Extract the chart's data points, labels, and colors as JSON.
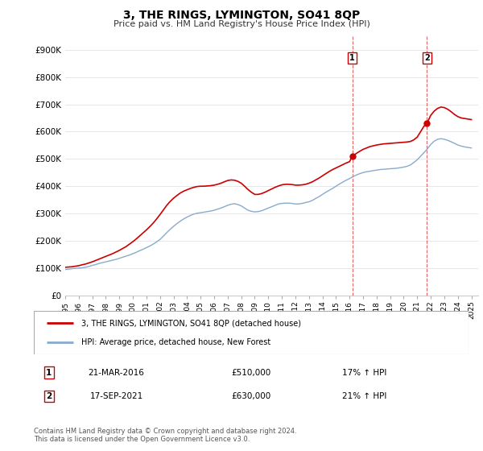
{
  "title": "3, THE RINGS, LYMINGTON, SO41 8QP",
  "subtitle": "Price paid vs. HM Land Registry's House Price Index (HPI)",
  "ylabel_ticks": [
    "£0",
    "£100K",
    "£200K",
    "£300K",
    "£400K",
    "£500K",
    "£600K",
    "£700K",
    "£800K",
    "£900K"
  ],
  "ytick_values": [
    0,
    100000,
    200000,
    300000,
    400000,
    500000,
    600000,
    700000,
    800000,
    900000
  ],
  "ylim": [
    0,
    950000
  ],
  "xlim_start": 1995.0,
  "xlim_end": 2025.5,
  "line1_color": "#cc0000",
  "line2_color": "#88aacc",
  "vline_color": "#cc0000",
  "legend_label1": "3, THE RINGS, LYMINGTON, SO41 8QP (detached house)",
  "legend_label2": "HPI: Average price, detached house, New Forest",
  "annotation1_label": "1",
  "annotation1_date": "21-MAR-2016",
  "annotation1_price": "£510,000",
  "annotation1_hpi": "17% ↑ HPI",
  "annotation1_year": 2016.21,
  "annotation1_value": 510000,
  "annotation2_label": "2",
  "annotation2_date": "17-SEP-2021",
  "annotation2_price": "£630,000",
  "annotation2_hpi": "21% ↑ HPI",
  "annotation2_year": 2021.71,
  "annotation2_value": 630000,
  "footer": "Contains HM Land Registry data © Crown copyright and database right 2024.\nThis data is licensed under the Open Government Licence v3.0.",
  "hpi_line": {
    "years": [
      1995.0,
      1995.25,
      1995.5,
      1995.75,
      1996.0,
      1996.25,
      1996.5,
      1996.75,
      1997.0,
      1997.25,
      1997.5,
      1997.75,
      1998.0,
      1998.25,
      1998.5,
      1998.75,
      1999.0,
      1999.25,
      1999.5,
      1999.75,
      2000.0,
      2000.25,
      2000.5,
      2000.75,
      2001.0,
      2001.25,
      2001.5,
      2001.75,
      2002.0,
      2002.25,
      2002.5,
      2002.75,
      2003.0,
      2003.25,
      2003.5,
      2003.75,
      2004.0,
      2004.25,
      2004.5,
      2004.75,
      2005.0,
      2005.25,
      2005.5,
      2005.75,
      2006.0,
      2006.25,
      2006.5,
      2006.75,
      2007.0,
      2007.25,
      2007.5,
      2007.75,
      2008.0,
      2008.25,
      2008.5,
      2008.75,
      2009.0,
      2009.25,
      2009.5,
      2009.75,
      2010.0,
      2010.25,
      2010.5,
      2010.75,
      2011.0,
      2011.25,
      2011.5,
      2011.75,
      2012.0,
      2012.25,
      2012.5,
      2012.75,
      2013.0,
      2013.25,
      2013.5,
      2013.75,
      2014.0,
      2014.25,
      2014.5,
      2014.75,
      2015.0,
      2015.25,
      2015.5,
      2015.75,
      2016.0,
      2016.25,
      2016.5,
      2016.75,
      2017.0,
      2017.25,
      2017.5,
      2017.75,
      2018.0,
      2018.25,
      2018.5,
      2018.75,
      2019.0,
      2019.25,
      2019.5,
      2019.75,
      2020.0,
      2020.25,
      2020.5,
      2020.75,
      2021.0,
      2021.25,
      2021.5,
      2021.75,
      2022.0,
      2022.25,
      2022.5,
      2022.75,
      2023.0,
      2023.25,
      2023.5,
      2023.75,
      2024.0,
      2024.25,
      2024.5,
      2024.75,
      2025.0
    ],
    "values": [
      95000,
      96000,
      98000,
      99000,
      100000,
      101000,
      103000,
      106000,
      110000,
      113000,
      117000,
      120000,
      123000,
      126000,
      129000,
      132000,
      136000,
      140000,
      144000,
      148000,
      153000,
      158000,
      164000,
      169000,
      175000,
      181000,
      188000,
      196000,
      205000,
      217000,
      230000,
      242000,
      253000,
      263000,
      272000,
      280000,
      287000,
      293000,
      298000,
      301000,
      303000,
      305000,
      307000,
      309000,
      312000,
      316000,
      320000,
      325000,
      330000,
      334000,
      336000,
      333000,
      328000,
      320000,
      312000,
      308000,
      306000,
      307000,
      310000,
      315000,
      320000,
      325000,
      330000,
      335000,
      337000,
      338000,
      338000,
      337000,
      335000,
      335000,
      337000,
      340000,
      343000,
      348000,
      355000,
      362000,
      370000,
      378000,
      385000,
      392000,
      400000,
      408000,
      415000,
      422000,
      428000,
      435000,
      441000,
      446000,
      450000,
      453000,
      455000,
      457000,
      459000,
      461000,
      462000,
      463000,
      464000,
      465000,
      466000,
      468000,
      470000,
      473000,
      478000,
      487000,
      497000,
      510000,
      523000,
      537000,
      553000,
      565000,
      572000,
      574000,
      572000,
      568000,
      563000,
      557000,
      551000,
      547000,
      544000,
      542000,
      540000
    ]
  },
  "price_line": {
    "years": [
      1995.0,
      1995.25,
      1995.5,
      1995.75,
      1996.0,
      1996.25,
      1996.5,
      1996.75,
      1997.0,
      1997.25,
      1997.5,
      1997.75,
      1998.0,
      1998.25,
      1998.5,
      1998.75,
      1999.0,
      1999.25,
      1999.5,
      1999.75,
      2000.0,
      2000.25,
      2000.5,
      2000.75,
      2001.0,
      2001.25,
      2001.5,
      2001.75,
      2002.0,
      2002.25,
      2002.5,
      2002.75,
      2003.0,
      2003.25,
      2003.5,
      2003.75,
      2004.0,
      2004.25,
      2004.5,
      2004.75,
      2005.0,
      2005.25,
      2005.5,
      2005.75,
      2006.0,
      2006.25,
      2006.5,
      2006.75,
      2007.0,
      2007.25,
      2007.5,
      2007.75,
      2008.0,
      2008.25,
      2008.5,
      2008.75,
      2009.0,
      2009.25,
      2009.5,
      2009.75,
      2010.0,
      2010.25,
      2010.5,
      2010.75,
      2011.0,
      2011.25,
      2011.5,
      2011.75,
      2012.0,
      2012.25,
      2012.5,
      2012.75,
      2013.0,
      2013.25,
      2013.5,
      2013.75,
      2014.0,
      2014.25,
      2014.5,
      2014.75,
      2015.0,
      2015.25,
      2015.5,
      2015.75,
      2016.0,
      2016.21,
      2016.5,
      2016.75,
      2017.0,
      2017.25,
      2017.5,
      2017.75,
      2018.0,
      2018.25,
      2018.5,
      2018.75,
      2019.0,
      2019.25,
      2019.5,
      2019.75,
      2020.0,
      2020.25,
      2020.5,
      2020.75,
      2021.0,
      2021.25,
      2021.5,
      2021.71,
      2022.0,
      2022.25,
      2022.5,
      2022.75,
      2023.0,
      2023.25,
      2023.5,
      2023.75,
      2024.0,
      2024.25,
      2024.5,
      2024.75,
      2025.0
    ],
    "values": [
      103000,
      104000,
      105000,
      107000,
      109000,
      112000,
      115000,
      119000,
      123000,
      128000,
      133000,
      138000,
      143000,
      148000,
      153000,
      159000,
      165000,
      172000,
      179000,
      188000,
      197000,
      207000,
      218000,
      229000,
      240000,
      252000,
      265000,
      280000,
      296000,
      313000,
      330000,
      344000,
      356000,
      366000,
      375000,
      382000,
      387000,
      392000,
      396000,
      399000,
      400000,
      400000,
      401000,
      402000,
      404000,
      407000,
      411000,
      416000,
      421000,
      423000,
      422000,
      418000,
      411000,
      400000,
      388000,
      378000,
      370000,
      370000,
      373000,
      378000,
      384000,
      390000,
      396000,
      401000,
      405000,
      407000,
      407000,
      406000,
      404000,
      404000,
      405000,
      407000,
      411000,
      416000,
      423000,
      430000,
      438000,
      446000,
      454000,
      461000,
      467000,
      473000,
      479000,
      485000,
      490000,
      510000,
      520000,
      528000,
      535000,
      540000,
      545000,
      548000,
      551000,
      553000,
      555000,
      556000,
      557000,
      558000,
      559000,
      560000,
      561000,
      562000,
      564000,
      570000,
      580000,
      600000,
      620000,
      630000,
      660000,
      675000,
      685000,
      690000,
      688000,
      682000,
      673000,
      663000,
      655000,
      650000,
      648000,
      646000,
      644000
    ]
  },
  "xtick_years": [
    1995,
    1996,
    1997,
    1998,
    1999,
    2000,
    2001,
    2002,
    2003,
    2004,
    2005,
    2006,
    2007,
    2008,
    2009,
    2010,
    2011,
    2012,
    2013,
    2014,
    2015,
    2016,
    2017,
    2018,
    2019,
    2020,
    2021,
    2022,
    2023,
    2024,
    2025
  ]
}
